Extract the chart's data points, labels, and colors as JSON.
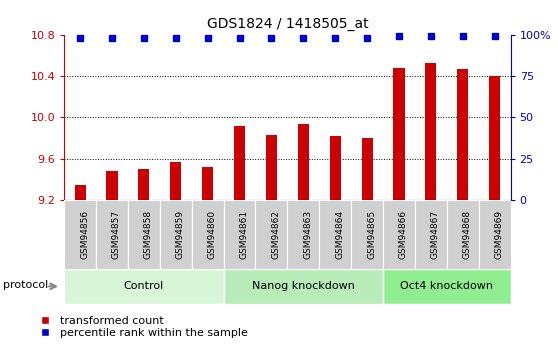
{
  "title": "GDS1824 / 1418505_at",
  "samples": [
    "GSM94856",
    "GSM94857",
    "GSM94858",
    "GSM94859",
    "GSM94860",
    "GSM94861",
    "GSM94862",
    "GSM94863",
    "GSM94864",
    "GSM94865",
    "GSM94866",
    "GSM94867",
    "GSM94868",
    "GSM94869"
  ],
  "bar_values": [
    9.35,
    9.48,
    9.5,
    9.57,
    9.52,
    9.92,
    9.83,
    9.94,
    9.82,
    9.8,
    10.48,
    10.52,
    10.47,
    10.4
  ],
  "percentile_values": [
    98,
    98,
    98,
    98,
    98,
    98,
    98,
    98,
    98,
    98,
    99,
    99,
    99,
    99
  ],
  "bar_color": "#cc0000",
  "dot_color": "#0000cc",
  "ylim_left": [
    9.2,
    10.8
  ],
  "ylim_right": [
    0,
    100
  ],
  "yticks_left": [
    9.2,
    9.6,
    10.0,
    10.4,
    10.8
  ],
  "yticks_right": [
    0,
    25,
    50,
    75,
    100
  ],
  "grid_values": [
    9.6,
    10.0,
    10.4
  ],
  "groups": [
    {
      "label": "Control",
      "start": 0,
      "end": 5,
      "color": "#d8f5d8"
    },
    {
      "label": "Nanog knockdown",
      "start": 5,
      "end": 10,
      "color": "#b8ecb8"
    },
    {
      "label": "Oct4 knockdown",
      "start": 10,
      "end": 14,
      "color": "#90ee90"
    }
  ],
  "protocol_label": "protocol",
  "legend_items": [
    {
      "label": "transformed count",
      "color": "#cc0000"
    },
    {
      "label": "percentile rank within the sample",
      "color": "#0000cc"
    }
  ],
  "bg_color_plot": "#ffffff",
  "bg_color_fig": "#ffffff",
  "tick_bg_color": "#d0d0d0"
}
